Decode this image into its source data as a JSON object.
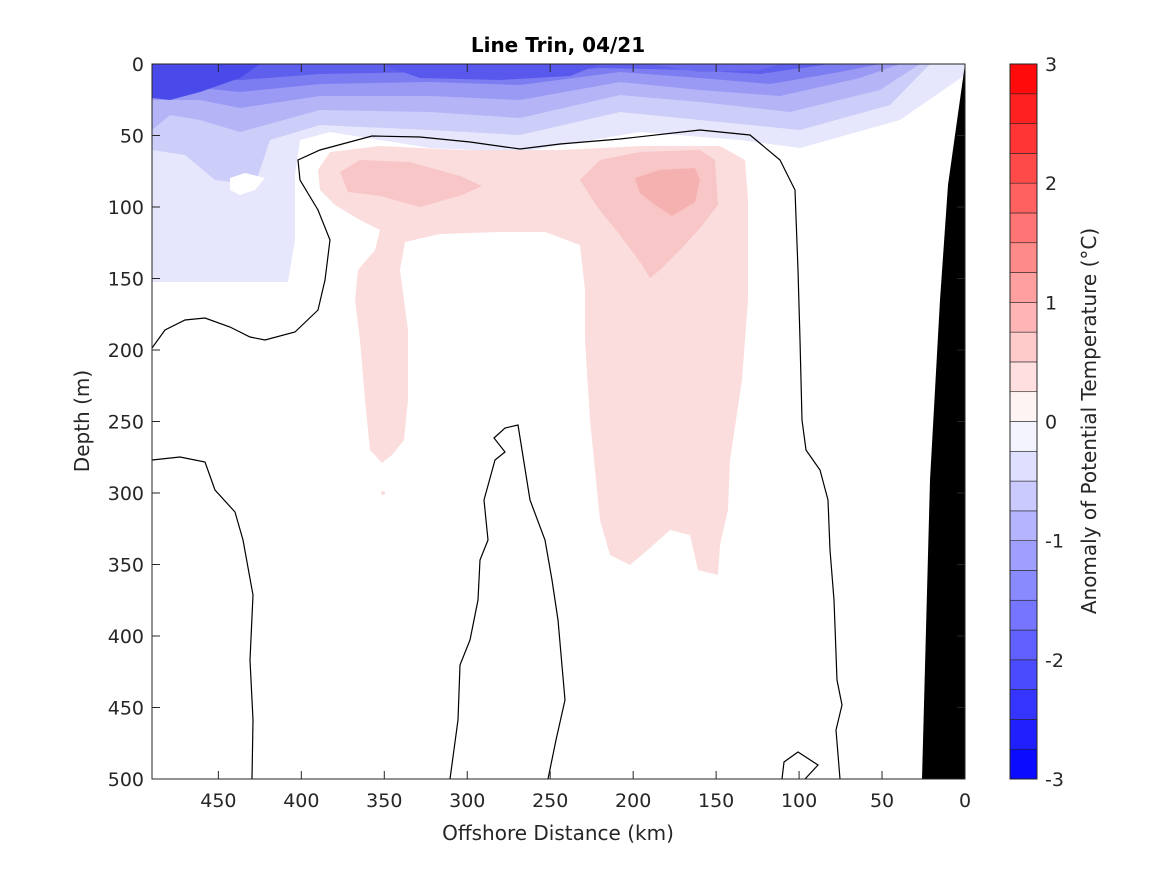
{
  "chart_data": {
    "type": "heatmap",
    "title": "Line Trin, 04/21",
    "xlabel": "Offshore Distance (km)",
    "ylabel": "Depth (m)",
    "xlim": [
      490,
      0
    ],
    "ylim": [
      0,
      500
    ],
    "x_ticks": [
      "450",
      "400",
      "350",
      "300",
      "250",
      "200",
      "150",
      "100",
      "50",
      "0"
    ],
    "y_ticks": [
      "0",
      "50",
      "100",
      "150",
      "200",
      "250",
      "300",
      "350",
      "400",
      "450",
      "500"
    ],
    "colorbar": {
      "label": "Anomaly of Potential Temperature (°C)",
      "range": [
        -3,
        3
      ],
      "step": 0.25,
      "ticks": [
        "3",
        "2",
        "1",
        "0",
        "-1",
        "-2",
        "-3"
      ]
    },
    "features": [
      {
        "kind": "cold surface layer",
        "anomaly_c": -2.0,
        "depth_m": [
          0,
          60
        ]
      },
      {
        "kind": "cold lens offshore",
        "anomaly_c": -0.5,
        "depth_m": [
          60,
          150
        ],
        "distance_km": [
          490,
          395
        ]
      },
      {
        "kind": "warm core",
        "anomaly_c": 0.75,
        "depth_m": [
          70,
          110
        ],
        "distance_km": [
          200,
          160
        ]
      },
      {
        "kind": "warm tongue",
        "anomaly_c": 0.25,
        "depth_m": [
          60,
          360
        ],
        "distance_km": [
          220,
          150
        ]
      },
      {
        "kind": "warm tongue",
        "anomaly_c": 0.25,
        "depth_m": [
          60,
          280
        ],
        "distance_km": [
          370,
          340
        ]
      },
      {
        "kind": "zero contour",
        "anomaly_c": 0
      }
    ]
  }
}
